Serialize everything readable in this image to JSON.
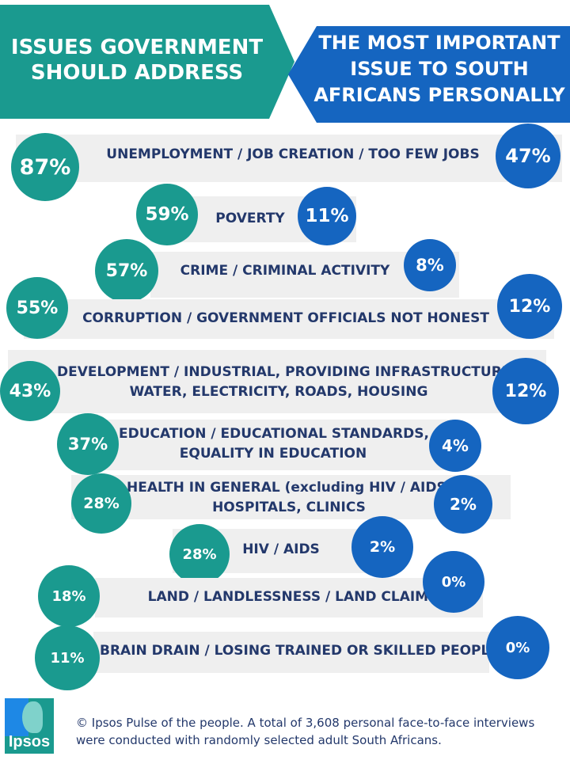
{
  "header": {
    "left_title_1": "ISSUES GOVERNMENT",
    "left_title_2": "SHOULD ADDRESS",
    "right_title_1": "THE MOST IMPORTANT",
    "right_title_2": "ISSUE TO SOUTH",
    "right_title_3": "AFRICANS PERSONALLY"
  },
  "colors": {
    "teal": "#1a9a8f",
    "blue": "#1565c0",
    "label": "#23386b",
    "band": "#efefef"
  },
  "chart_data": {
    "type": "table",
    "columns": [
      "ISSUES GOVERNMENT SHOULD ADDRESS",
      "THE MOST IMPORTANT ISSUE TO SOUTH AFRICANS PERSONALLY"
    ],
    "rows": [
      {
        "label": [
          "UNEMPLOYMENT / JOB CREATION / TOO FEW JOBS"
        ],
        "government": 87,
        "personal": 47,
        "government_text": "87%",
        "personal_text": "47%"
      },
      {
        "label": [
          "POVERTY"
        ],
        "government": 59,
        "personal": 11,
        "government_text": "59%",
        "personal_text": "11%"
      },
      {
        "label": [
          "CRIME / CRIMINAL ACTIVITY"
        ],
        "government": 57,
        "personal": 8,
        "government_text": "57%",
        "personal_text": "8%"
      },
      {
        "label": [
          "CORRUPTION / GOVERNMENT OFFICIALS  NOT HONEST"
        ],
        "government": 55,
        "personal": 12,
        "government_text": "55%",
        "personal_text": "12%"
      },
      {
        "label": [
          "DEVELOPMENT  / INDUSTRIAL, PROVIDING INFRASTRUCTURE.",
          "WATER, ELECTRICITY, ROADS, HOUSING"
        ],
        "government": 43,
        "personal": 12,
        "government_text": "43%",
        "personal_text": "12%"
      },
      {
        "label": [
          "EDUCATION / EDUCATIONAL STANDARDS,",
          "EQUALITY IN EDUCATION"
        ],
        "government": 37,
        "personal": 4,
        "government_text": "37%",
        "personal_text": "4%"
      },
      {
        "label": [
          "HEALTH IN GENERAL  (excluding HIV / AIDS)",
          "HOSPITALS, CLINICS"
        ],
        "government": 28,
        "personal": 2,
        "government_text": "28%",
        "personal_text": "2%"
      },
      {
        "label": [
          "HIV / AIDS"
        ],
        "government": 28,
        "personal": 2,
        "government_text": "28%",
        "personal_text": "2%"
      },
      {
        "label": [
          "LAND / LANDLESSNESS  / LAND CLAIMS"
        ],
        "government": 18,
        "personal": 0,
        "government_text": "18%",
        "personal_text": "0%"
      },
      {
        "label": [
          "BRAIN DRAIN / LOSING TRAINED OR SKILLED PEOPLE."
        ],
        "government": 11,
        "personal": 0,
        "government_text": "11%",
        "personal_text": "0%"
      }
    ]
  },
  "footer": {
    "logo_text": "Ipsos",
    "line1": "© Ipsos Pulse of the people. A total of 3,608 personal face-to-face interviews",
    "line2": "were conducted with randomly selected adult South Africans."
  }
}
